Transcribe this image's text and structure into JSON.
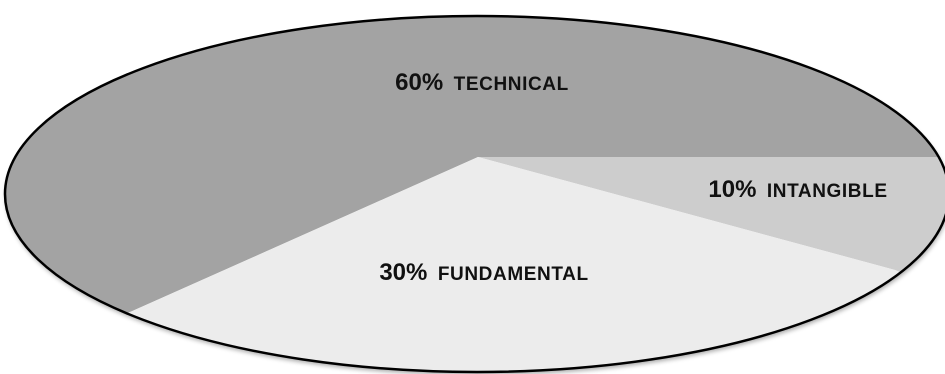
{
  "chart_data": {
    "type": "pie",
    "slices": [
      {
        "percent": "60%",
        "label": "TECHNICAL",
        "value": 60,
        "color": "#a3a3a3"
      },
      {
        "percent": "10%",
        "label": "INTANGIBLE",
        "value": 10,
        "color": "#cdcdcd"
      },
      {
        "percent": "30%",
        "label": "FUNDAMENTAL",
        "value": 30,
        "color": "#ececec"
      }
    ],
    "outline_color": "#000000"
  }
}
